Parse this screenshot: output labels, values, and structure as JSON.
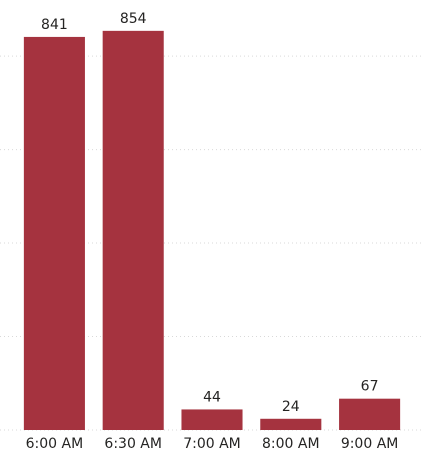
{
  "chart_data": {
    "type": "bar",
    "categories": [
      "6:00 AM",
      "6:30 AM",
      "7:00 AM",
      "8:00 AM",
      "9:00 AM"
    ],
    "values": [
      841,
      854,
      44,
      24,
      67
    ],
    "color": "#a5333f",
    "ylim": [
      0,
      920
    ],
    "yticks": [
      0,
      200,
      400,
      600,
      800
    ],
    "grid": true
  }
}
